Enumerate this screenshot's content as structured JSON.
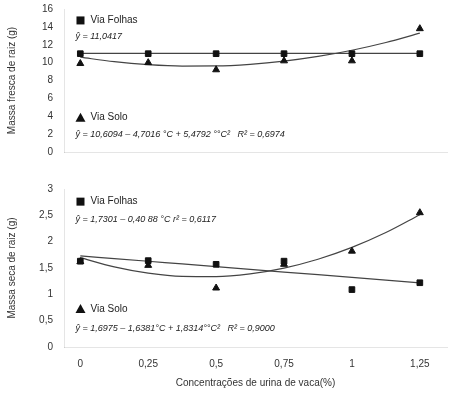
{
  "chart_data": [
    {
      "type": "scatter",
      "ylabel": "Massa fresca de raiz (g)",
      "xlim": [
        -0.06,
        1.35
      ],
      "xticks": [
        0,
        {
          "value": 0.25,
          "label": "0,25"
        },
        {
          "value": 0.5,
          "label": "0,5"
        },
        {
          "value": 0.75,
          "label": "0,75"
        },
        1,
        {
          "value": 1.25,
          "label": "1,25"
        }
      ],
      "ylim": [
        0,
        16
      ],
      "yticks": [
        0,
        2,
        4,
        6,
        8,
        10,
        12,
        14,
        16
      ],
      "grid": false,
      "tick_labels": "y",
      "series": [
        {
          "type": "line",
          "color": "#444444",
          "x": [
            0,
            0.125,
            0.25,
            0.375,
            0.5,
            0.625,
            0.75,
            0.875,
            1,
            1.125,
            1.25
          ],
          "values": [
            11.0417,
            11.0417,
            11.0417,
            11.0417,
            11.0417,
            11.0417,
            11.0417,
            11.0417,
            11.0417,
            11.0417,
            11.0417
          ]
        },
        {
          "type": "line",
          "color": "#444444",
          "x": [
            0,
            0.125,
            0.25,
            0.375,
            0.5,
            0.625,
            0.75,
            0.875,
            1,
            1.125,
            1.25
          ],
          "values": [
            10.6094,
            10.1073125,
            9.77645,
            9.6168125,
            9.6284,
            9.8112125,
            10.16525,
            10.6905125,
            11.387,
            12.2547125,
            13.29365
          ]
        },
        {
          "name": "Via Folhas",
          "type": "scatter",
          "marker": "square",
          "color": "#111111",
          "x": [
            0,
            0.25,
            0.5,
            0.75,
            1,
            1.25
          ],
          "values": [
            11.0,
            11.0,
            11.0,
            11.0,
            11.0,
            11.0
          ]
        },
        {
          "name": "Via Solo",
          "type": "scatter",
          "marker": "triangle",
          "color": "#111111",
          "x": [
            0,
            0.25,
            0.5,
            0.75,
            1,
            1.25
          ],
          "values": [
            9.9,
            10.0,
            9.2,
            10.2,
            10.2,
            13.8
          ]
        }
      ],
      "annotations": [
        "ŷ = 11,0417",
        "ŷ = 10,6094 – 4,7016 °C + 5,4792 °°C²   R² = 0,6974"
      ]
    },
    {
      "type": "scatter",
      "xlabel": "Concentrações de urina de vaca(%)",
      "ylabel": "Massa seca de raiz (g)",
      "xlim": [
        -0.06,
        1.35
      ],
      "xticks": [
        0,
        {
          "value": 0.25,
          "label": "0,25"
        },
        {
          "value": 0.5,
          "label": "0,5"
        },
        {
          "value": 0.75,
          "label": "0,75"
        },
        1,
        {
          "value": 1.25,
          "label": "1,25"
        }
      ],
      "ylim": [
        0,
        3
      ],
      "yticks": [
        0,
        {
          "value": 0.5,
          "label": "0,5"
        },
        1,
        {
          "value": 1.5,
          "label": "1,5"
        },
        2,
        {
          "value": 2.5,
          "label": "2,5"
        },
        3
      ],
      "grid": false,
      "series": [
        {
          "type": "line",
          "color": "#444444",
          "x": [
            0,
            0.125,
            0.25,
            0.375,
            0.5,
            0.625,
            0.75,
            0.875,
            1,
            1.125,
            1.25
          ],
          "values": [
            1.7301,
            1.679,
            1.6279,
            1.5768,
            1.5257,
            1.4746,
            1.4235,
            1.3724,
            1.3213,
            1.2702,
            1.2191
          ]
        },
        {
          "type": "line",
          "color": "#444444",
          "x": [
            0,
            0.125,
            0.25,
            0.375,
            0.5,
            0.625,
            0.75,
            0.875,
            1,
            1.125,
            1.25
          ],
          "values": [
            1.6975,
            1.521353125,
            1.4024375,
            1.340753125,
            1.3363,
            1.389078125,
            1.4990875,
            1.666328125,
            1.8908,
            2.172503125,
            2.5114375
          ]
        },
        {
          "name": "Via Folhas",
          "type": "scatter",
          "marker": "square",
          "color": "#111111",
          "x": [
            0,
            0.25,
            0.5,
            0.75,
            1,
            1.25
          ],
          "values": [
            1.63,
            1.64,
            1.57,
            1.63,
            1.09,
            1.22
          ]
        },
        {
          "name": "Via Solo",
          "type": "scatter",
          "marker": "triangle",
          "color": "#111111",
          "x": [
            0,
            0.25,
            0.5,
            0.75,
            1,
            1.25
          ],
          "values": [
            1.62,
            1.55,
            1.12,
            1.57,
            1.82,
            2.55
          ]
        }
      ],
      "annotations": [
        "ŷ = 1,7301 – 0,40 88 °C r² = 0,6117",
        "ŷ = 1,6975 – 1,6381°C + 1,8314°°C²   R² = 0,9000"
      ]
    }
  ]
}
